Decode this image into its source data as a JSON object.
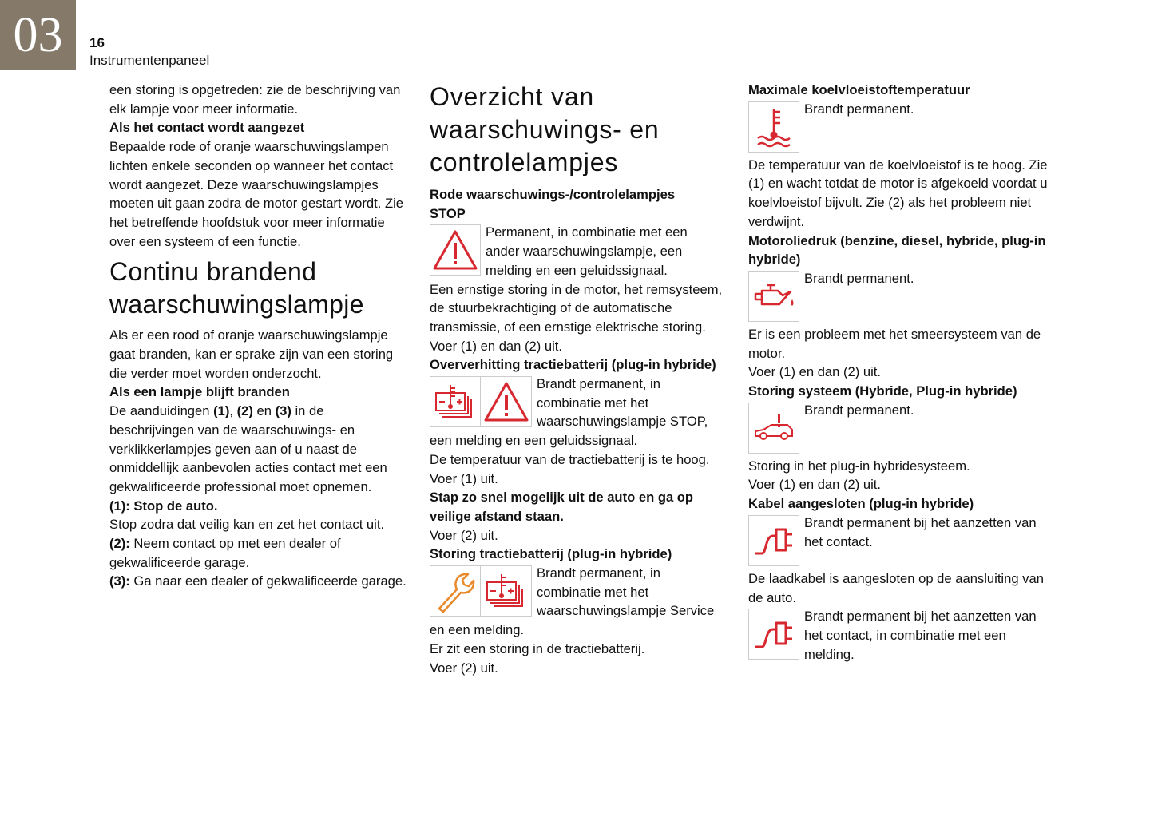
{
  "header": {
    "chapter": "03",
    "page_number": "16",
    "section": "Instrumentenpaneel"
  },
  "col1": {
    "p1": "een storing is opgetreden: zie de beschrijving van elk lampje voor meer informatie.",
    "h_contact": "Als het contact wordt aangezet",
    "p2": "Bepaalde rode of oranje waarschuwingslampen lichten enkele seconden op wanneer het contact wordt aangezet. Deze waarschuwingslampjes moeten uit gaan zodra de motor gestart wordt. Zie het betreffende hoofdstuk voor meer informatie over een systeem of een functie.",
    "title": "Continu brandend waarschuwingslampje",
    "p3": "Als er een rood of oranje waarschuwingslampje gaat branden, kan er sprake zijn van een storing die verder moet worden onderzocht.",
    "h_lamp": "Als een lampje blijft branden",
    "p4a": "De aanduidingen ",
    "p4b": "(1)",
    "p4c": ", ",
    "p4d": "(2)",
    "p4e": " en ",
    "p4f": "(3)",
    "p4g": " in de beschrijvingen van de waarschuwings- en verklikkerlampjes geven aan of u naast de onmiddellijk aanbevolen acties contact met een gekwalificeerde professional moet opnemen.",
    "s1": "(1): Stop de auto.",
    "s1t": "Stop zodra dat veilig kan en zet het contact uit.",
    "s2": "(2):",
    "s2t": " Neem contact op met een dealer of gekwalificeerde garage.",
    "s3": "(3):",
    "s3t": " Ga naar een dealer of gekwalificeerde garage."
  },
  "col2": {
    "title": "Overzicht van waarschuwings- en controlelampjes",
    "h_red": "Rode waarschuwings-/controlelampjes",
    "h_stop": "STOP",
    "stop_desc": "Permanent, in combinatie met een ander waarschuwingslampje, een melding en een geluidssignaal.",
    "stop_p": "Een ernstige storing in de motor, het remsysteem, de stuurbekrachtiging of de automatische transmissie, of een ernstige elektrische storing.",
    "stop_act": "Voer (1) en dan (2) uit.",
    "h_overheat": "Oververhitting tractiebatterij (plug-in hybride)",
    "overheat_desc": "Brandt permanent, in combinatie met het waarschuwingslampje STOP, een melding en een geluidssignaal.",
    "overheat_p": "De temperatuur van de tractiebatterij is te hoog.",
    "overheat_act": "Voer (1) uit.",
    "overheat_bold": "Stap zo snel mogelijk uit de auto en ga op veilige afstand staan.",
    "overheat_act2": "Voer (2) uit.",
    "h_battfault": "Storing tractiebatterij (plug-in hybride)",
    "battfault_desc": "Brandt permanent, in combinatie met het waarschuwingslampje Service en een melding.",
    "battfault_p": "Er zit een storing in de tractiebatterij.",
    "battfault_act": "Voer (2) uit."
  },
  "col3": {
    "h_coolant": "Maximale koelvloeistoftemperatuur",
    "coolant_desc": "Brandt permanent.",
    "coolant_p": "De temperatuur van de koelvloeistof is te hoog. Zie (1) en wacht totdat de motor is afgekoeld voordat u koelvloeistof bijvult. Zie (2) als het probleem niet verdwijnt.",
    "h_oil": "Motoroliedruk (benzine, diesel, hybride, plug-in hybride)",
    "oil_desc": "Brandt permanent.",
    "oil_p": "Er is een probleem met het smeersysteem van de motor.",
    "oil_act": "Voer (1) en dan (2) uit.",
    "h_hybrid": "Storing systeem (Hybride, Plug-in hybride)",
    "hybrid_desc": "Brandt permanent.",
    "hybrid_p": "Storing in het plug-in hybridesysteem.",
    "hybrid_act": "Voer (1) en dan (2) uit.",
    "h_cable": "Kabel aangesloten (plug-in hybride)",
    "cable_desc1": "Brandt permanent bij het aanzetten van het contact.",
    "cable_p": "De laadkabel is aangesloten op de aansluiting van de auto.",
    "cable_desc2": "Brandt permanent bij het aanzetten van het contact, in combinatie met een melding."
  },
  "colors": {
    "warning_red": "#d7282f",
    "warning_orange": "#e8892b",
    "chapter_bg": "#857a6a"
  }
}
